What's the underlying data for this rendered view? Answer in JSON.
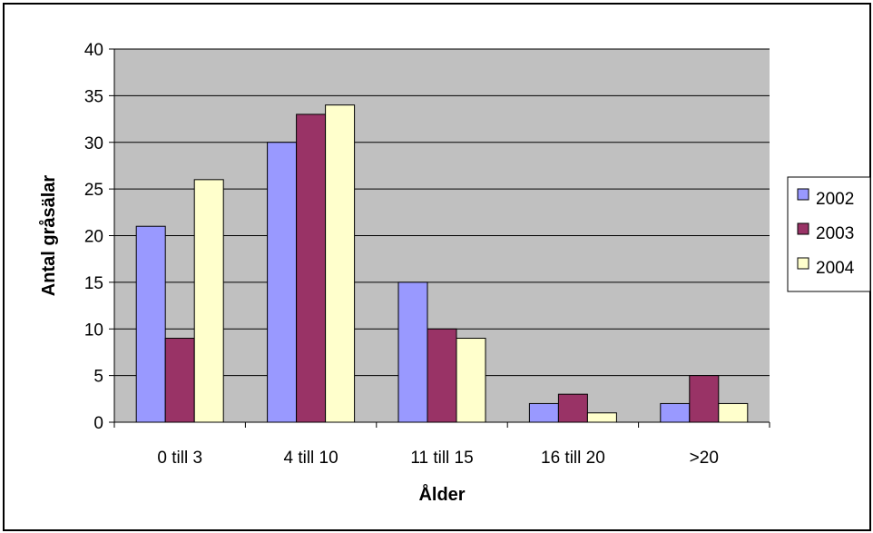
{
  "chart_data": {
    "type": "bar",
    "title": "",
    "xlabel": "Ålder",
    "ylabel": "Antal gråsälar",
    "categories": [
      "0 till 3",
      "4 till 10",
      "11 till 15",
      "16 till 20",
      ">20"
    ],
    "series": [
      {
        "name": "2002",
        "values": [
          21,
          30,
          15,
          2,
          2
        ],
        "color": "#9999FF"
      },
      {
        "name": "2003",
        "values": [
          9,
          33,
          10,
          3,
          5
        ],
        "color": "#993366"
      },
      {
        "name": "2004",
        "values": [
          26,
          34,
          9,
          1,
          2
        ],
        "color": "#FFFFCC"
      }
    ],
    "ylim": [
      0,
      40
    ],
    "yticks": [
      0,
      5,
      10,
      15,
      20,
      25,
      30,
      35,
      40
    ],
    "grid": true,
    "plot_background": "#C0C0C0",
    "legend_position": "right"
  }
}
